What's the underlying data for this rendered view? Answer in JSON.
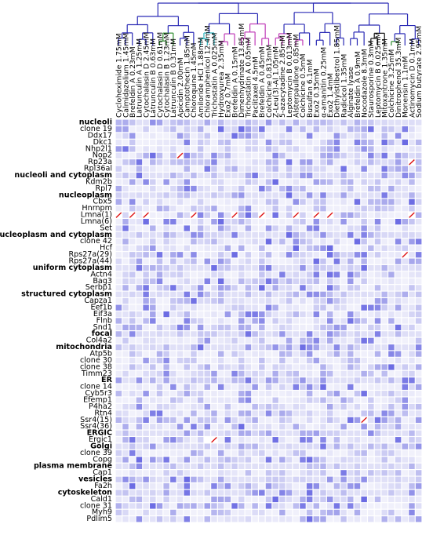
{
  "chart_data": {
    "type": "heatmap",
    "title": "",
    "xlabel": "",
    "ylabel": "",
    "columns": [
      "Cycloheximide 1.75mM",
      "Calmidazolium 1.45mM",
      "Brefeldin A 0.23mM",
      "Latrunculin A 1.25mM",
      "Cytochalasin D 2.45mM",
      "Latrunculin B 0.63mM",
      "Cytochalasin D 0.61mM",
      "Cytochalasin B 1.23mM",
      "Latrunculin B 0.31mM",
      "Apicidin 2.00mM",
      "Camptothecin 1.85mM",
      "Chloroquine 1.45mM",
      "Amiloride HCl 1.88mM",
      "Chloramphenicol 12.4mM",
      "Trichostatin A 0.025mM",
      "Hydroxyurea 2.35mM",
      "Exo2 0.7mM",
      "Brefeldin A 0.15mM",
      "Dimenhydrinate 13.85mM",
      "Trichostatin A 0.05mM",
      "Paclitaxel 4.5mM",
      "Brefeldin A 0.45mM",
      "Colchicine 0.813mM",
      "Z-Leu(3)-Al 1.05mM",
      "5-azacytadine 2.85mM",
      "Leptomycin B 0.013mM",
      "Alsterpaullone 0.85mM",
      "Colchicine 0.5mM",
      "Busulfan 6.1mM",
      "Exo2 0.35mM",
      "α-amanitin 0.25mM",
      "Exo2 1.4mM",
      "Diethylstilbestrol 1.85mM",
      "Radicicol 1.35mM",
      "Alginate lyase",
      "Brefeldin A 0.9mM",
      "Nocodazole 8.3mM",
      "Staurosporine 0.3mM",
      "Leptomycin B 0.025mM",
      "Mitoxantrone 1.35mM",
      "Colchicine 3.25mM",
      "Dinitrophenol 35.3mM",
      "Monensin 1.1mM",
      "Actinomycin D 0.1mM",
      "Sodium butyrate 2.95mM"
    ],
    "rows": [
      {
        "label": "nucleoli",
        "header": true
      },
      {
        "label": "clone 19"
      },
      {
        "label": "Ddx17"
      },
      {
        "label": "Dkc1"
      },
      {
        "label": "Nhp2l1"
      },
      {
        "label": "Nop2"
      },
      {
        "label": "Rp23a"
      },
      {
        "label": "Rpl36al"
      },
      {
        "label": "nucleoli and cytoplasm",
        "header": true
      },
      {
        "label": "Kdm2b"
      },
      {
        "label": "Rpl7"
      },
      {
        "label": "nucleoplasm",
        "header": true
      },
      {
        "label": "Cbx5"
      },
      {
        "label": "Hnrnpm"
      },
      {
        "label": "Lmna(1)"
      },
      {
        "label": "Lmna(6)"
      },
      {
        "label": "Set"
      },
      {
        "label": "nucleoplasm and cytoplasm",
        "header": true
      },
      {
        "label": "clone 42"
      },
      {
        "label": "Hcf"
      },
      {
        "label": "Rps27a(29)"
      },
      {
        "label": "Rps27a(44)"
      },
      {
        "label": "uniform cytoplasm",
        "header": true
      },
      {
        "label": "Actn4"
      },
      {
        "label": "Bag3"
      },
      {
        "label": "Serbp1"
      },
      {
        "label": "structured cytoplasm",
        "header": true
      },
      {
        "label": "Capza1"
      },
      {
        "label": "Eef1b"
      },
      {
        "label": "Eif3a"
      },
      {
        "label": "Flnb"
      },
      {
        "label": "Snd1"
      },
      {
        "label": "focal",
        "header": true
      },
      {
        "label": "Col4a2"
      },
      {
        "label": "mitochondria",
        "header": true
      },
      {
        "label": "Atp5b"
      },
      {
        "label": "clone 30"
      },
      {
        "label": "clone 38"
      },
      {
        "label": "Timm23"
      },
      {
        "label": "ER",
        "header": true
      },
      {
        "label": "clone 14"
      },
      {
        "label": "Cyb5r3"
      },
      {
        "label": "Efemp1"
      },
      {
        "label": "P4ha2"
      },
      {
        "label": "Rtn4"
      },
      {
        "label": "Ssr4(15)"
      },
      {
        "label": "Ssr4(36)"
      },
      {
        "label": "ERGIC",
        "header": true
      },
      {
        "label": "Ergic1"
      },
      {
        "label": "Golgi",
        "header": true
      },
      {
        "label": "clone 39"
      },
      {
        "label": "Copg"
      },
      {
        "label": "plasma membrane",
        "header": true
      },
      {
        "label": "Cap1"
      },
      {
        "label": "vesicles",
        "header": true
      },
      {
        "label": "Fa2h"
      },
      {
        "label": "cytoskeleton",
        "header": true
      },
      {
        "label": "Cald1"
      },
      {
        "label": "clone 31"
      },
      {
        "label": "Myh9"
      },
      {
        "label": "Pdlim5"
      }
    ],
    "color_scale": {
      "low": "#f1f1fb",
      "mid": "#a9a9ec",
      "high": "#1a1ad8"
    },
    "missing_marker_color": "#dd1111",
    "missing_cells": [
      [
        5,
        9
      ],
      [
        6,
        43
      ],
      [
        14,
        0
      ],
      [
        14,
        2
      ],
      [
        14,
        4
      ],
      [
        14,
        11
      ],
      [
        14,
        17
      ],
      [
        14,
        21
      ],
      [
        14,
        26
      ],
      [
        14,
        29
      ],
      [
        14,
        31
      ],
      [
        14,
        43
      ],
      [
        20,
        42
      ],
      [
        45,
        36
      ],
      [
        48,
        14
      ]
    ],
    "empty_cells": [
      [
        48,
        13
      ]
    ],
    "dendrogram_clusters": [
      {
        "color": "#2f8f2f",
        "columns": [
          4,
          8
        ]
      },
      {
        "color": "#d42b2b",
        "columns": [
          9,
          9
        ]
      },
      {
        "color": "#2bb5c0",
        "columns": [
          12,
          14
        ]
      },
      {
        "color": "#c03cb8",
        "columns": [
          15,
          27
        ]
      },
      {
        "color": "#cfc21e",
        "columns": [
          30,
          32
        ]
      },
      {
        "color": "#111111",
        "columns": [
          36,
          39
        ]
      },
      {
        "color": "#2f8f2f",
        "columns": [
          40,
          41
        ]
      },
      {
        "color": "#d42b2b",
        "columns": [
          42,
          43
        ]
      }
    ],
    "dendrogram_root_color": "#2a2ab5"
  }
}
